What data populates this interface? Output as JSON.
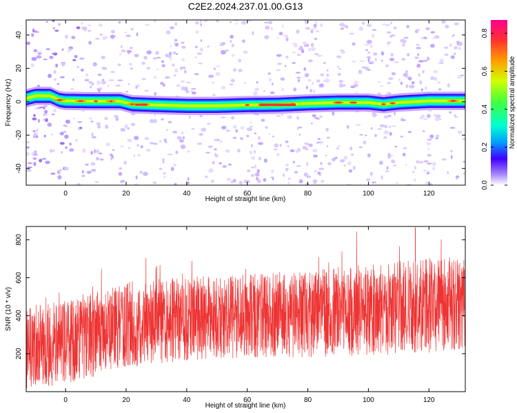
{
  "title": "C2E2.2024.237.01.00.G13",
  "chart_data": [
    {
      "type": "heatmap",
      "xlabel": "Height of straight line (km)",
      "ylabel": "Frequency (Hz)",
      "xlim": [
        -13,
        132
      ],
      "ylim": [
        -50,
        49
      ],
      "xticks": [
        "0",
        "20",
        "40",
        "60",
        "80",
        "100",
        "120"
      ],
      "yticks": [
        "40",
        "20",
        "0",
        "-20",
        "-40"
      ],
      "colorbar": {
        "label": "Normalized spectral amplitude",
        "range": [
          0,
          0.87
        ],
        "ticks": [
          "0.0",
          "0.2",
          "0.4",
          "0.6",
          "0.8"
        ],
        "colors": [
          "#ffffff",
          "#a080ff",
          "#4000ff",
          "#00a0ff",
          "#00ffd0",
          "#40ff40",
          "#d0ff00",
          "#ffa000",
          "#ff3030",
          "#ff0090"
        ]
      },
      "ridge": {
        "x": [
          -13,
          -10,
          -5,
          -2,
          0,
          10,
          18,
          22,
          30,
          40,
          50,
          60,
          70,
          80,
          90,
          100,
          105,
          110,
          120,
          132
        ],
        "y": [
          2,
          3.5,
          3.5,
          1,
          0.5,
          0.3,
          0.3,
          -1.5,
          -2,
          -2.5,
          -2.5,
          -2,
          -1.8,
          -1,
          -0.5,
          -0.5,
          -1.5,
          -0.5,
          0.5,
          0.5
        ]
      },
      "hotspots_x": [
        -2,
        5,
        10,
        15,
        22,
        26,
        60,
        65,
        70,
        75,
        90,
        95,
        105,
        108,
        128
      ]
    },
    {
      "type": "line",
      "xlabel": "Height of straight line (km)",
      "ylabel": "SNR (10 * v/v)",
      "xlim": [
        -13,
        132
      ],
      "ylim": [
        0,
        870
      ],
      "xticks": [
        "0",
        "20",
        "40",
        "60",
        "80",
        "100",
        "120"
      ],
      "yticks": [
        "200",
        "400",
        "600",
        "800"
      ],
      "color": "#ee3333",
      "trend": {
        "x": [
          -13,
          0,
          20,
          40,
          60,
          80,
          100,
          120,
          132
        ],
        "mean": [
          230,
          260,
          350,
          385,
          400,
          410,
          430,
          455,
          460
        ],
        "spread": [
          220,
          220,
          230,
          220,
          220,
          230,
          240,
          250,
          250
        ]
      },
      "max_marker": {
        "x": 115.5,
        "y": 865
      }
    }
  ]
}
